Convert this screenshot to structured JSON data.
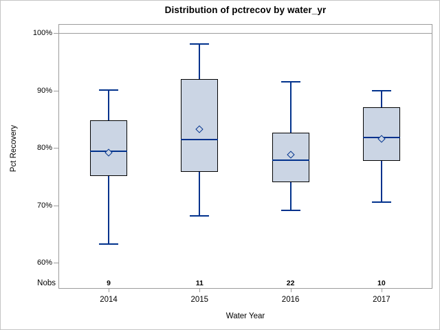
{
  "chart_data": {
    "type": "box",
    "title": "Distribution of pctrecov by water_yr",
    "xlabel": "Water Year",
    "ylabel": "Pct Recovery",
    "nobs_row_label": "Nobs",
    "y_axis": {
      "min": 60,
      "max": 100,
      "tick_step": 10,
      "tick_format": "percent",
      "ticks": [
        {
          "value": 100,
          "label": "100%"
        },
        {
          "value": 90,
          "label": "90%"
        },
        {
          "value": 80,
          "label": "80%"
        },
        {
          "value": 70,
          "label": "70%"
        },
        {
          "value": 60,
          "label": "60%"
        }
      ]
    },
    "refline_value": 100,
    "grid": false,
    "legend": false,
    "categories": [
      "2014",
      "2015",
      "2016",
      "2017"
    ],
    "series": [
      {
        "category": "2014",
        "nobs": 9,
        "whisker_low": 63.2,
        "q1": 75.1,
        "median": 79.4,
        "mean": 79.2,
        "q3": 84.8,
        "whisker_high": 90.1
      },
      {
        "category": "2015",
        "nobs": 11,
        "whisker_low": 68.1,
        "q1": 75.8,
        "median": 81.4,
        "mean": 83.2,
        "q3": 92.0,
        "whisker_high": 98.1
      },
      {
        "category": "2016",
        "nobs": 22,
        "whisker_low": 69.1,
        "q1": 74.0,
        "median": 77.8,
        "mean": 78.8,
        "q3": 82.6,
        "whisker_high": 91.5
      },
      {
        "category": "2017",
        "nobs": 10,
        "whisker_low": 70.5,
        "q1": 77.7,
        "median": 81.8,
        "mean": 81.6,
        "q3": 87.1,
        "whisker_high": 90.0
      }
    ],
    "colors": {
      "box_fill": "#cbd5e4",
      "box_border": "#000000",
      "line": "#00318c",
      "frame": "#9b9b9b",
      "refline": "#9b9b9b",
      "text": "#000000"
    }
  }
}
